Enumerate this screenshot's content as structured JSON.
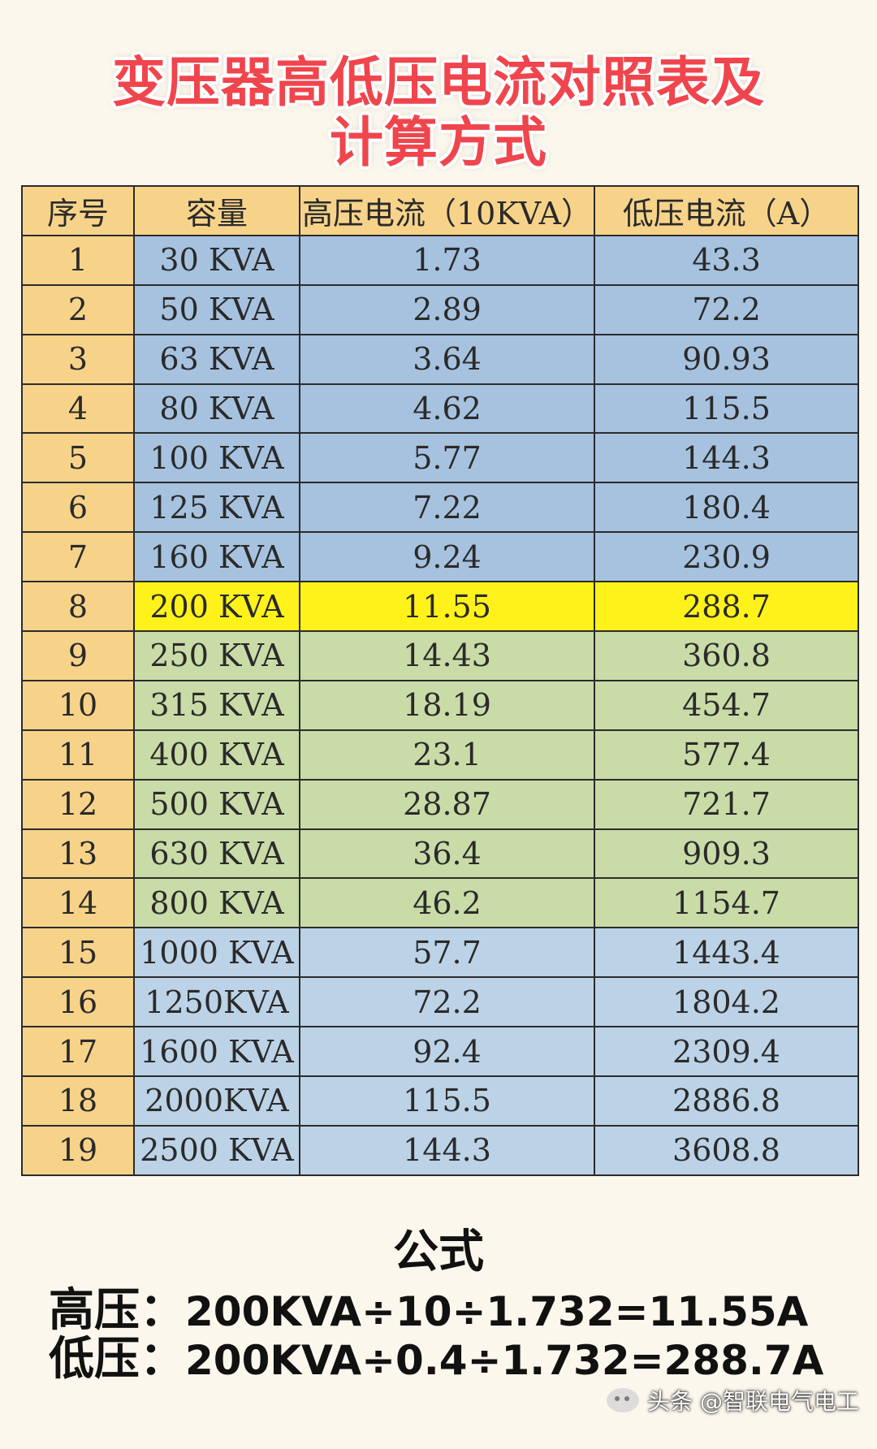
{
  "title": {
    "line1": "变压器高低压电流对照表及",
    "line2": "计算方式"
  },
  "table": {
    "headers": [
      "序号",
      "容量",
      "高压电流（10KVA）",
      "低压电流（A）"
    ],
    "rows": [
      [
        "1",
        "30 KVA",
        "1.73",
        "43.3"
      ],
      [
        "2",
        "50 KVA",
        "2.89",
        "72.2"
      ],
      [
        "3",
        "63 KVA",
        "3.64",
        "90.93"
      ],
      [
        "4",
        "80 KVA",
        "4.62",
        "115.5"
      ],
      [
        "5",
        "100 KVA",
        "5.77",
        "144.3"
      ],
      [
        "6",
        "125 KVA",
        "7.22",
        "180.4"
      ],
      [
        "7",
        "160 KVA",
        "9.24",
        "230.9"
      ],
      [
        "8",
        "200 KVA",
        "11.55",
        "288.7"
      ],
      [
        "9",
        "250 KVA",
        "14.43",
        "360.8"
      ],
      [
        "10",
        "315 KVA",
        "18.19",
        "454.7"
      ],
      [
        "11",
        "400 KVA",
        "23.1",
        "577.4"
      ],
      [
        "12",
        "500 KVA",
        "28.87",
        "721.7"
      ],
      [
        "13",
        "630 KVA",
        "36.4",
        "909.3"
      ],
      [
        "14",
        "800 KVA",
        "46.2",
        "1154.7"
      ],
      [
        "15",
        "1000 KVA",
        "57.7",
        "1443.4"
      ],
      [
        "16",
        "1250KVA",
        "72.2",
        "1804.2"
      ],
      [
        "17",
        "1600 KVA",
        "92.4",
        "2309.4"
      ],
      [
        "18",
        "2000KVA",
        "115.5",
        "2886.8"
      ],
      [
        "19",
        "2500 KVA",
        "144.3",
        "3608.8"
      ]
    ]
  },
  "colors": {
    "title": "#f0454d",
    "seq_column": "#f7d38a",
    "band_blue": "#a6c2df",
    "band_highlight": "#fff21a",
    "band_green": "#c9dba7",
    "band_light_blue": "#bcd2e6"
  },
  "formula": {
    "heading": "公式",
    "high_label": "高压：",
    "high_expr": "200KVA÷10÷1.732=11.55A",
    "low_label": "低压：",
    "low_expr": "200KVA÷0.4÷1.732=288.7A"
  },
  "watermark": {
    "icon": "wechat-icon",
    "text": "头条 @智联电气电工"
  }
}
